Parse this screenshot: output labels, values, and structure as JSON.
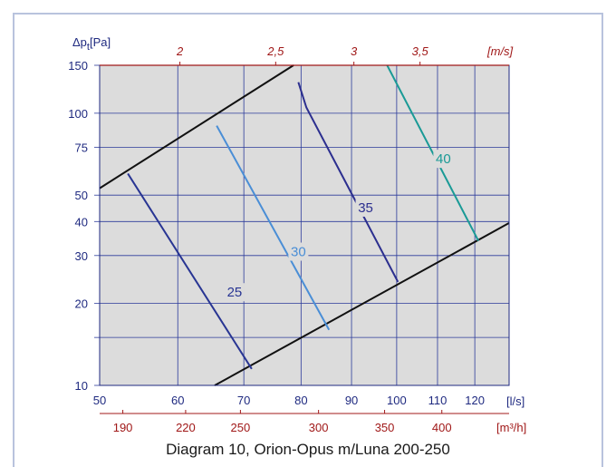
{
  "caption": "Diagram 10, Orion-Opus m/Luna 200-250",
  "chart_data": {
    "type": "line",
    "x": {
      "label": "[l/s]",
      "scale": "log",
      "range": [
        50,
        130
      ],
      "ticks": [
        50,
        60,
        70,
        80,
        90,
        100,
        110,
        120
      ]
    },
    "y": {
      "label_main": "Δp",
      "label_sub": "t",
      "label_unit": "[Pa]",
      "scale": "log",
      "range": [
        10,
        150
      ],
      "ticks": [
        10,
        20,
        30,
        40,
        50,
        75,
        100,
        150
      ],
      "extra_gridlines": [
        15
      ]
    },
    "x_secondary": {
      "label": "[m³/h]",
      "ticks": [
        190,
        220,
        250,
        300,
        350,
        400
      ],
      "factor": 3.6
    },
    "x_top": {
      "label": "[m/s]",
      "ticks": [
        "2",
        "2,5",
        "3",
        "3,5"
      ],
      "tick_flow_positions": [
        60.3,
        75.4,
        90.5,
        105.6
      ]
    },
    "grid": true,
    "limit_lines": [
      {
        "points": [
          [
            50,
            53
          ],
          [
            78.6,
            150
          ]
        ]
      },
      {
        "points": [
          [
            65.4,
            10
          ],
          [
            130,
            39.5
          ]
        ]
      }
    ],
    "series": [
      {
        "name": "25",
        "color": "#283593",
        "points": [
          [
            53.4,
            60
          ],
          [
            71.3,
            11.5
          ]
        ],
        "label_at": [
          68.5,
          22
        ]
      },
      {
        "name": "30",
        "color": "#4a8ed6",
        "points": [
          [
            65.7,
            90
          ],
          [
            85.4,
            16
          ]
        ],
        "label_at": [
          79.5,
          31
        ]
      },
      {
        "name": "35",
        "color": "#2c2f8f",
        "points": [
          [
            79.5,
            130
          ],
          [
            81,
            105
          ],
          [
            100.3,
            24
          ]
        ],
        "label_at": [
          93,
          45
        ]
      },
      {
        "name": "40",
        "color": "#1a9a96",
        "points": [
          [
            97.8,
            150
          ],
          [
            121,
            34
          ]
        ],
        "label_at": [
          111.5,
          68
        ]
      }
    ]
  }
}
